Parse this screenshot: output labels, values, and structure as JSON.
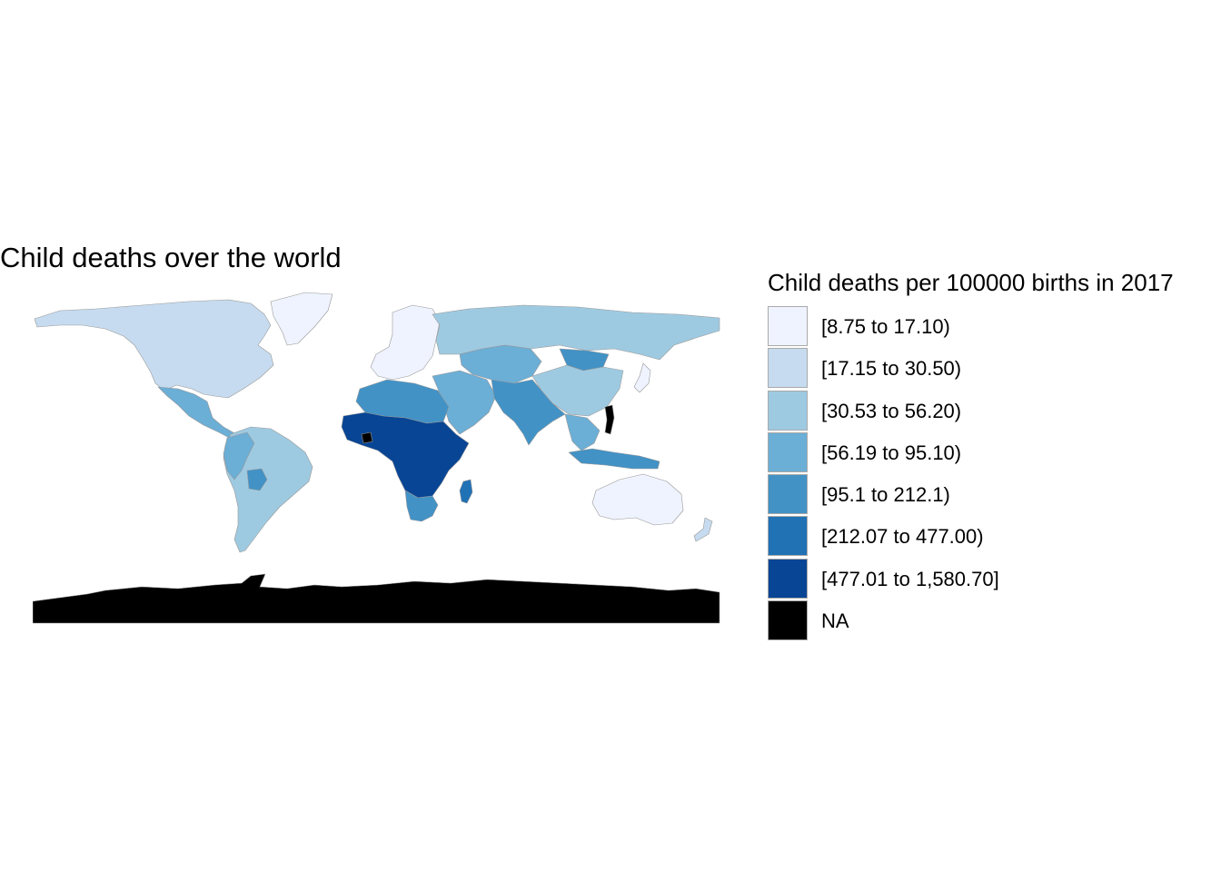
{
  "title": "Child deaths over the world",
  "legend": {
    "title": "Child deaths per 100000 births in 2017",
    "items": [
      {
        "label": "[8.75 to 17.10)",
        "color": "#eff3ff"
      },
      {
        "label": "[17.15 to 30.50)",
        "color": "#c6dbef"
      },
      {
        "label": "[30.53 to 56.20)",
        "color": "#9ecae1"
      },
      {
        "label": "[56.19 to 95.10)",
        "color": "#6baed6"
      },
      {
        "label": "[95.1 to 212.1)",
        "color": "#4292c6"
      },
      {
        "label": "[212.07 to 477.00)",
        "color": "#2171b5"
      },
      {
        "label": "[477.01 to 1,580.70]",
        "color": "#084594"
      },
      {
        "label": "NA",
        "color": "#000000"
      }
    ]
  },
  "regions": [
    {
      "name": "north-america",
      "class": 1
    },
    {
      "name": "greenland",
      "class": 0
    },
    {
      "name": "central-america",
      "class": 3
    },
    {
      "name": "south-america",
      "class": 2
    },
    {
      "name": "andes",
      "class": 3
    },
    {
      "name": "bolivia",
      "class": 4
    },
    {
      "name": "europe",
      "class": 0
    },
    {
      "name": "russia",
      "class": 2
    },
    {
      "name": "central-asia",
      "class": 3
    },
    {
      "name": "mongolia",
      "class": 4
    },
    {
      "name": "china",
      "class": 2
    },
    {
      "name": "middle-east",
      "class": 3
    },
    {
      "name": "south-asia",
      "class": 4
    },
    {
      "name": "southeast-asia",
      "class": 3
    },
    {
      "name": "indonesia",
      "class": 4
    },
    {
      "name": "north-africa",
      "class": 4
    },
    {
      "name": "sub-saharan-africa",
      "class": 6
    },
    {
      "name": "southern-africa",
      "class": 4
    },
    {
      "name": "madagascar",
      "class": 5
    },
    {
      "name": "australia",
      "class": 0
    },
    {
      "name": "new-zealand",
      "class": 1
    },
    {
      "name": "japan",
      "class": 0
    },
    {
      "name": "antarctica",
      "class": 7
    },
    {
      "name": "somalia",
      "class": 7
    },
    {
      "name": "cote-divoire",
      "class": 7
    }
  ]
}
